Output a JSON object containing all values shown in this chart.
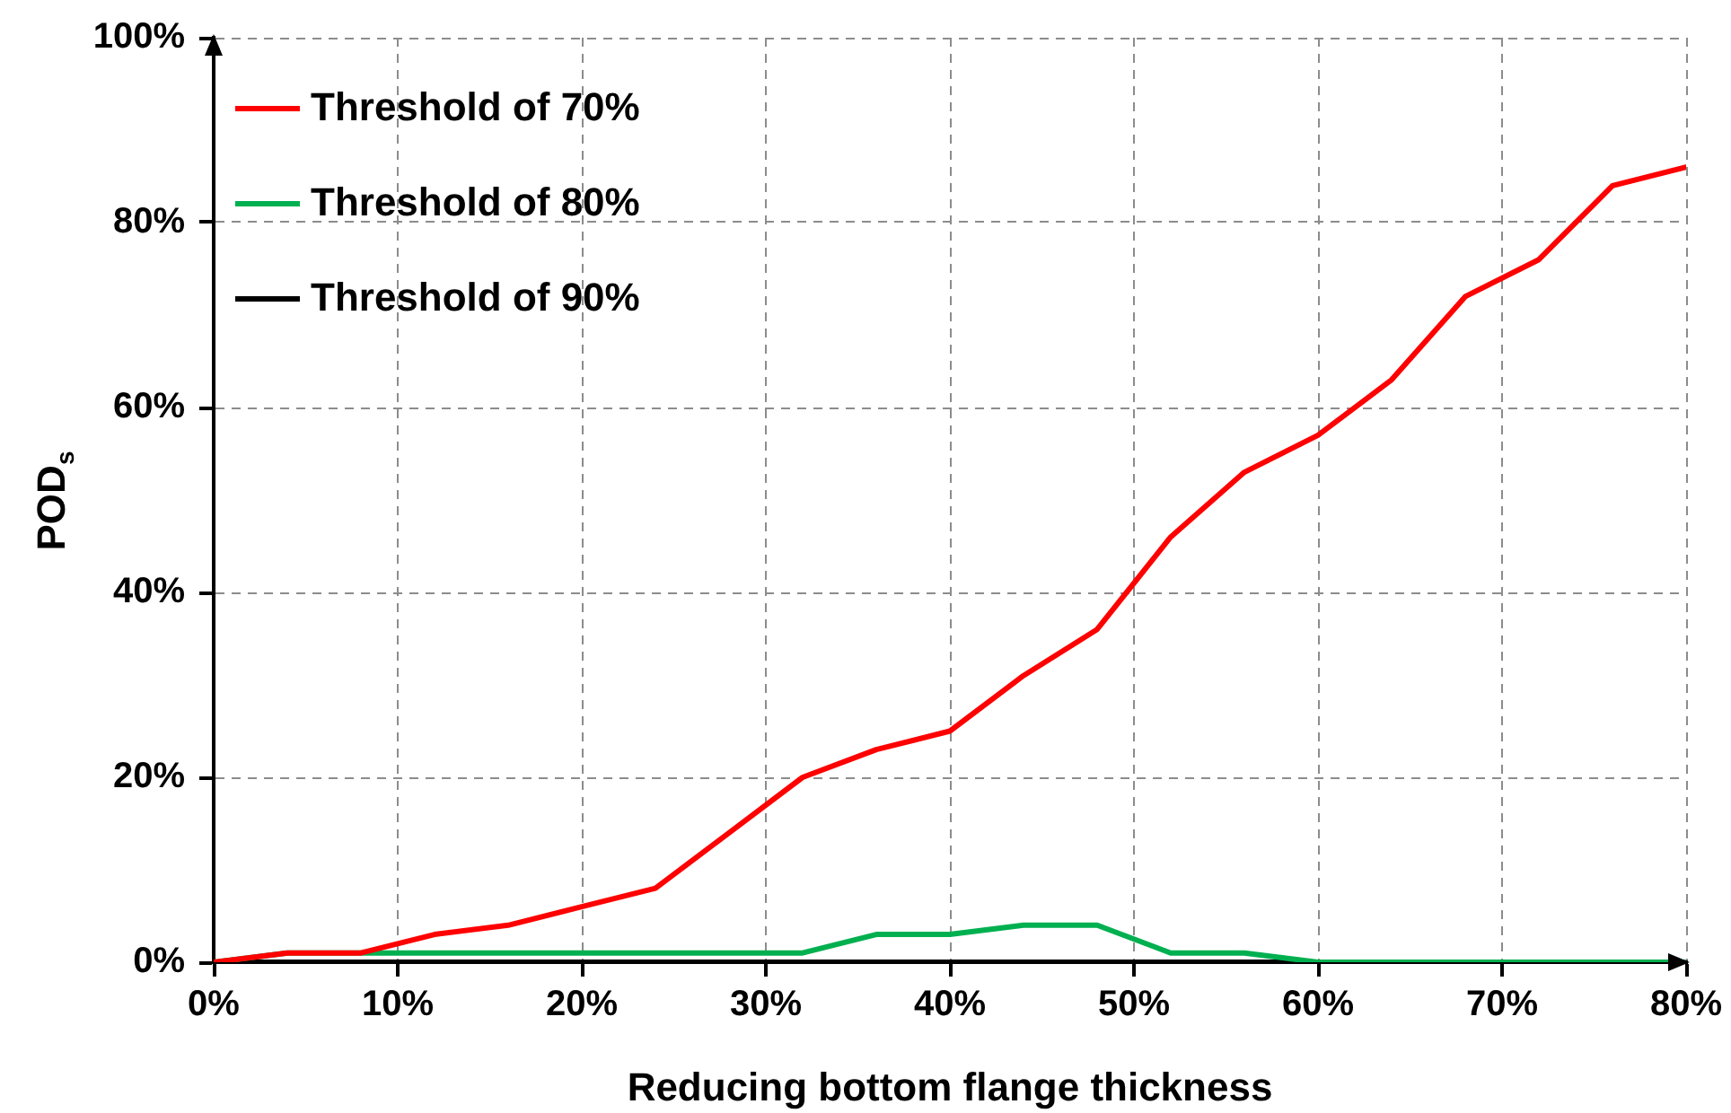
{
  "chart_data": {
    "type": "line",
    "xlabel": "Reducing bottom flange thickness",
    "ylabel": "POD$_{s}$",
    "x": [
      0,
      4,
      8,
      12,
      16,
      20,
      24,
      28,
      32,
      36,
      40,
      44,
      48,
      52,
      56,
      60,
      64,
      68,
      72,
      76,
      80
    ],
    "series": [
      {
        "name": "Threshold of 70%",
        "color": "#ff0000",
        "values": [
          0,
          1,
          1,
          3,
          4,
          6,
          8,
          14,
          20,
          23,
          25,
          31,
          36,
          46,
          53,
          57,
          63,
          72,
          76,
          84,
          86
        ]
      },
      {
        "name": "Threshold of 80%",
        "color": "#00b050",
        "values": [
          0,
          1,
          1,
          1,
          1,
          1,
          1,
          1,
          1,
          3,
          3,
          4,
          4,
          1,
          1,
          0,
          0,
          0,
          0,
          0,
          0
        ]
      },
      {
        "name": "Threshold of 90%",
        "color": "#000000",
        "values": [
          0,
          0,
          0,
          0,
          0,
          0,
          0,
          0,
          0,
          0,
          0,
          0,
          0,
          0,
          0,
          0,
          0,
          0,
          0,
          0,
          0
        ]
      }
    ],
    "xlim": [
      0,
      80
    ],
    "ylim": [
      0,
      100
    ],
    "xticks": [
      {
        "value": 0,
        "label": "0%"
      },
      {
        "value": 10,
        "label": "10%"
      },
      {
        "value": 20,
        "label": "20%"
      },
      {
        "value": 30,
        "label": "30%"
      },
      {
        "value": 40,
        "label": "40%"
      },
      {
        "value": 50,
        "label": "50%"
      },
      {
        "value": 60,
        "label": "60%"
      },
      {
        "value": 70,
        "label": "70%"
      },
      {
        "value": 80,
        "label": "80%"
      }
    ],
    "yticks": [
      {
        "value": 0,
        "label": "0%"
      },
      {
        "value": 20,
        "label": "20%"
      },
      {
        "value": 40,
        "label": "40%"
      },
      {
        "value": 60,
        "label": "60%"
      },
      {
        "value": 80,
        "label": "80%"
      },
      {
        "value": 100,
        "label": "100%"
      }
    ],
    "grid": true,
    "legend": "top left",
    "marker": "none",
    "line_style": "solid"
  }
}
